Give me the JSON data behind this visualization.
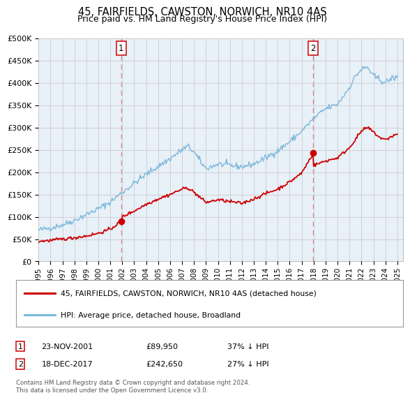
{
  "title": "45, FAIRFIELDS, CAWSTON, NORWICH, NR10 4AS",
  "subtitle": "Price paid vs. HM Land Registry's House Price Index (HPI)",
  "ylim": [
    0,
    500000
  ],
  "yticks": [
    0,
    50000,
    100000,
    150000,
    200000,
    250000,
    300000,
    350000,
    400000,
    450000,
    500000
  ],
  "ytick_labels": [
    "£0",
    "£50K",
    "£100K",
    "£150K",
    "£200K",
    "£250K",
    "£300K",
    "£350K",
    "£400K",
    "£450K",
    "£500K"
  ],
  "xlim_start": 1995.0,
  "xlim_end": 2025.5,
  "xticks": [
    1995,
    1996,
    1997,
    1998,
    1999,
    2000,
    2001,
    2002,
    2003,
    2004,
    2005,
    2006,
    2007,
    2008,
    2009,
    2010,
    2011,
    2012,
    2013,
    2014,
    2015,
    2016,
    2017,
    2018,
    2019,
    2020,
    2021,
    2022,
    2023,
    2024,
    2025
  ],
  "hpi_color": "#7ab8d9",
  "price_color": "#cc0000",
  "vline_color": "#e08080",
  "grid_color": "#cccccc",
  "background_color": "#e8f0f8",
  "marker1_date": 2001.9,
  "marker1_value": 89950,
  "marker2_date": 2017.97,
  "marker2_value": 242650,
  "sale1_date": "23-NOV-2001",
  "sale1_price": "£89,950",
  "sale1_hpi": "37% ↓ HPI",
  "sale2_date": "18-DEC-2017",
  "sale2_price": "£242,650",
  "sale2_hpi": "27% ↓ HPI",
  "legend_label_price": "45, FAIRFIELDS, CAWSTON, NORWICH, NR10 4AS (detached house)",
  "legend_label_hpi": "HPI: Average price, detached house, Broadland",
  "footnote": "Contains HM Land Registry data © Crown copyright and database right 2024.\nThis data is licensed under the Open Government Licence v3.0.",
  "title_fontsize": 10.5,
  "subtitle_fontsize": 9.0,
  "hpi_anchors_x": [
    1995,
    1996,
    1997,
    1998,
    1999,
    2000,
    2001,
    2002,
    2003,
    2004,
    2005,
    2006,
    2007,
    2007.5,
    2008,
    2008.5,
    2009,
    2010,
    2011,
    2012,
    2013,
    2014,
    2015,
    2016,
    2017,
    2018,
    2019,
    2020,
    2021,
    2021.5,
    2022,
    2022.5,
    2023,
    2023.5,
    2024,
    2024.5,
    2025
  ],
  "hpi_anchors_y": [
    70000,
    75000,
    82000,
    92000,
    105000,
    118000,
    133000,
    155000,
    175000,
    195000,
    213000,
    230000,
    250000,
    258000,
    245000,
    225000,
    208000,
    218000,
    215000,
    212000,
    218000,
    232000,
    248000,
    268000,
    292000,
    320000,
    342000,
    352000,
    390000,
    415000,
    430000,
    435000,
    415000,
    408000,
    400000,
    410000,
    412000
  ],
  "price_anchors_x": [
    1995,
    1996,
    1997,
    1998,
    1999,
    2000,
    2001,
    2001.9,
    2002,
    2003,
    2004,
    2005,
    2006,
    2007,
    2007.5,
    2008,
    2009,
    2010,
    2011,
    2012,
    2013,
    2014,
    2015,
    2016,
    2017,
    2017.97,
    2018,
    2019,
    2020,
    2021,
    2022,
    2022.5,
    2023,
    2023.5,
    2024,
    2024.5,
    2025
  ],
  "price_anchors_y": [
    45000,
    47000,
    50000,
    53000,
    57000,
    63000,
    72000,
    89950,
    100000,
    113000,
    128000,
    140000,
    150000,
    162000,
    165000,
    155000,
    132000,
    138000,
    134000,
    130000,
    140000,
    152000,
    162000,
    178000,
    198000,
    242650,
    215000,
    225000,
    232000,
    255000,
    292000,
    300000,
    290000,
    278000,
    272000,
    280000,
    285000
  ]
}
